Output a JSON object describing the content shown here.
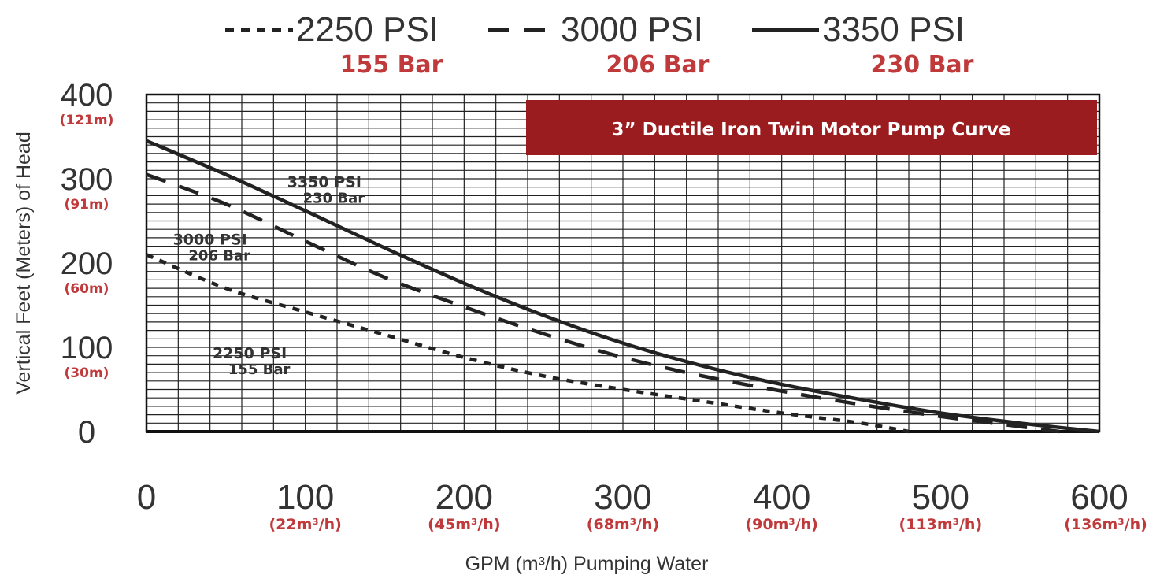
{
  "chart_data": {
    "type": "line",
    "title": "3” Ductile Iron Twin Motor Pump Curve",
    "xlabel": "GPM (m³/h) Pumping Water",
    "ylabel": "Vertical Feet (Meters) of Head",
    "xlim": [
      0,
      600
    ],
    "ylim": [
      0,
      400
    ],
    "grid": true,
    "legend_position": "top",
    "title_box_color": "#9b1c1f",
    "metric_label_color": "#c0393b",
    "x_ticks": [
      {
        "value": 0,
        "label": "0",
        "sub": ""
      },
      {
        "value": 100,
        "label": "100",
        "sub": "(22m³/h)"
      },
      {
        "value": 200,
        "label": "200",
        "sub": "(45m³/h)"
      },
      {
        "value": 300,
        "label": "300",
        "sub": "(68m³/h)"
      },
      {
        "value": 400,
        "label": "400",
        "sub": "(90m³/h)"
      },
      {
        "value": 500,
        "label": "500",
        "sub": "(113m³/h)"
      },
      {
        "value": 600,
        "label": "600",
        "sub": "(136m³/h)"
      }
    ],
    "y_ticks": [
      {
        "value": 0,
        "label": "0",
        "sub": ""
      },
      {
        "value": 100,
        "label": "100",
        "sub": "(30m)"
      },
      {
        "value": 200,
        "label": "200",
        "sub": "(60m)"
      },
      {
        "value": 300,
        "label": "300",
        "sub": "(91m)"
      },
      {
        "value": 400,
        "label": "400",
        "sub": "(121m)"
      }
    ],
    "series": [
      {
        "name": "2250 PSI",
        "sub": "155 Bar",
        "style": "dotted",
        "x": [
          0,
          50,
          100,
          150,
          200,
          250,
          300,
          350,
          400,
          450,
          480
        ],
        "y": [
          210,
          170,
          142,
          115,
          88,
          66,
          50,
          36,
          22,
          10,
          0
        ]
      },
      {
        "name": "3000 PSI",
        "sub": "206 Bar",
        "style": "dashed",
        "x": [
          0,
          50,
          100,
          150,
          200,
          250,
          300,
          350,
          400,
          450,
          500,
          550,
          575
        ],
        "y": [
          305,
          270,
          226,
          183,
          148,
          116,
          88,
          66,
          48,
          32,
          18,
          6,
          0
        ]
      },
      {
        "name": "3350 PSI",
        "sub": "230 Bar",
        "style": "solid",
        "x": [
          0,
          50,
          100,
          150,
          200,
          250,
          300,
          350,
          400,
          450,
          500,
          550,
          600
        ],
        "y": [
          345,
          305,
          262,
          218,
          176,
          138,
          105,
          78,
          56,
          38,
          22,
          10,
          0
        ]
      }
    ],
    "annotations": [
      {
        "series": 2,
        "line1": "3350 PSI",
        "line2": "230 Bar",
        "x": 112,
        "y": 290
      },
      {
        "series": 1,
        "line1": "3000 PSI",
        "line2": "206 Bar",
        "x": 40,
        "y": 222
      },
      {
        "series": 0,
        "line1": "2250 PSI",
        "line2": "155 Bar",
        "x": 65,
        "y": 87
      }
    ]
  }
}
